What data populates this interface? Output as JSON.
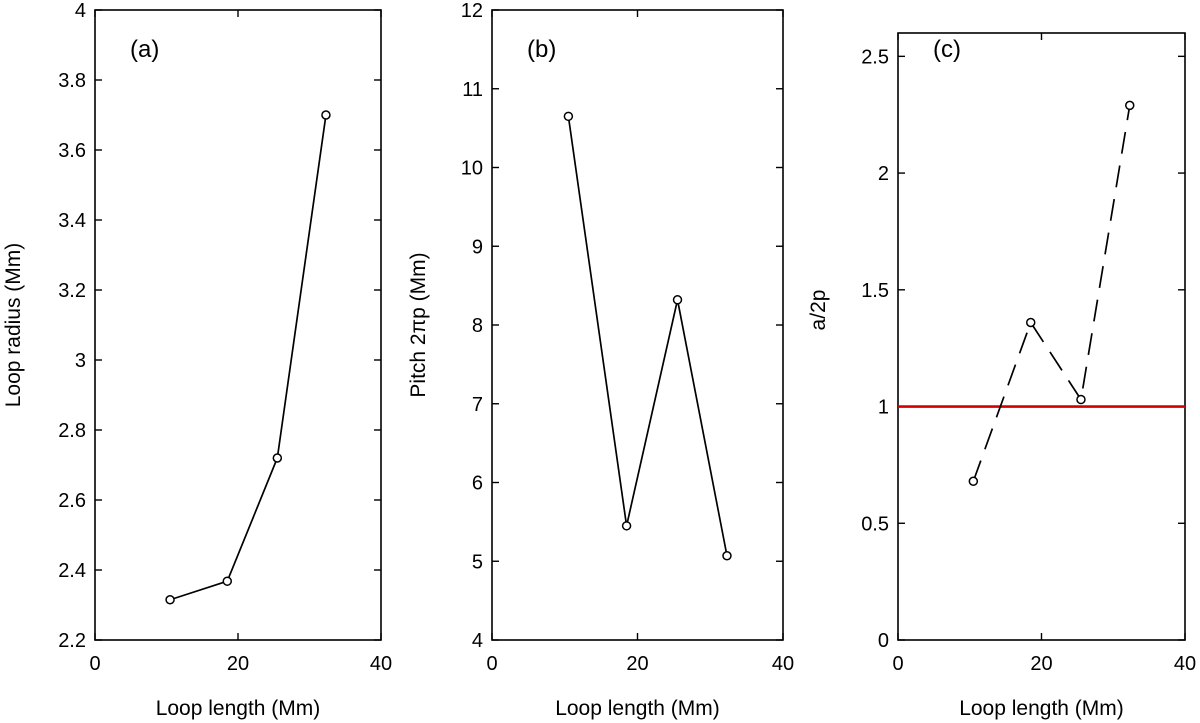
{
  "chart_data": [
    {
      "type": "line",
      "panel_label": "(a)",
      "xlabel": "Loop length (Mm)",
      "ylabel": "Loop radius (Mm)",
      "xlim": [
        0,
        40
      ],
      "ylim": [
        2.2,
        4.0
      ],
      "xticks": [
        0,
        20,
        40
      ],
      "xtick_labels": [
        "0",
        "20",
        "40"
      ],
      "yticks": [
        2.2,
        2.4,
        2.6,
        2.8,
        3.0,
        3.2,
        3.4,
        3.6,
        3.8,
        4.0
      ],
      "ytick_labels": [
        "2.2",
        "2.4",
        "2.6",
        "2.8",
        "3",
        "3.2",
        "3.4",
        "3.6",
        "3.8",
        "4"
      ],
      "line_style": "solid",
      "line_color": "#000000",
      "series": [
        {
          "name": "Loop radius",
          "x": [
            10.5,
            18.5,
            25.5,
            32.3
          ],
          "y": [
            2.315,
            2.368,
            2.72,
            3.7
          ]
        }
      ]
    },
    {
      "type": "line",
      "panel_label": "(b)",
      "xlabel": "Loop length (Mm)",
      "ylabel": "Pitch 2πp (Mm)",
      "xlim": [
        0,
        40
      ],
      "ylim": [
        4,
        12
      ],
      "xticks": [
        0,
        20,
        40
      ],
      "xtick_labels": [
        "0",
        "20",
        "40"
      ],
      "yticks": [
        4,
        5,
        6,
        7,
        8,
        9,
        10,
        11,
        12
      ],
      "ytick_labels": [
        "4",
        "5",
        "6",
        "7",
        "8",
        "9",
        "10",
        "11",
        "12"
      ],
      "line_style": "solid",
      "line_color": "#000000",
      "series": [
        {
          "name": "Pitch",
          "x": [
            10.5,
            18.5,
            25.5,
            32.3
          ],
          "y": [
            10.65,
            5.45,
            8.32,
            5.07
          ]
        }
      ]
    },
    {
      "type": "line",
      "panel_label": "(c)",
      "xlabel": "Loop length (Mm)",
      "ylabel": "a/2p",
      "xlim": [
        0,
        40
      ],
      "ylim": [
        0,
        2.6
      ],
      "xticks": [
        0,
        20,
        40
      ],
      "xtick_labels": [
        "0",
        "20",
        "40"
      ],
      "yticks": [
        0,
        0.5,
        1.0,
        1.5,
        2.0,
        2.5
      ],
      "ytick_labels": [
        "0",
        "0.5",
        "1",
        "1.5",
        "2",
        "2.5"
      ],
      "line_style": "dashed",
      "line_color": "#000000",
      "series": [
        {
          "name": "a/2p",
          "x": [
            10.5,
            18.5,
            25.5,
            32.3
          ],
          "y": [
            0.68,
            1.36,
            1.03,
            2.29
          ]
        }
      ],
      "reference_line": {
        "y": 1.0,
        "color": "#d40000"
      }
    }
  ]
}
